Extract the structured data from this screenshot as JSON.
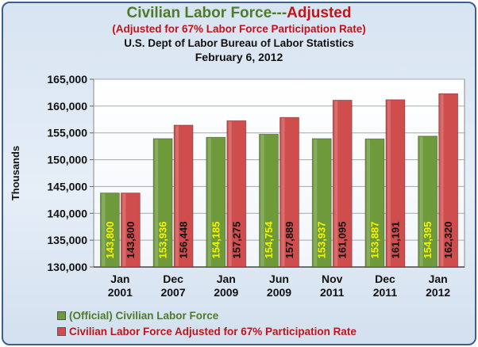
{
  "title": {
    "part1": "Civilian Labor Force---",
    "part2": "Adjusted",
    "line2": "(Adjusted for 67% Labor Force Participation Rate)",
    "line3": "U.S. Dept of Labor Bureau of Labor Statistics",
    "line4": "February 6, 2012"
  },
  "colors": {
    "title_green": "#4f7a2a",
    "title_red": "#c0141b",
    "official_bar": "#6e9a3c",
    "adjusted_bar": "#cf4d4d",
    "official_label": "#f5f500",
    "adjusted_label": "#111111"
  },
  "chart_data": {
    "type": "bar",
    "categories": [
      [
        "Jan",
        "2001"
      ],
      [
        "Dec",
        "2007"
      ],
      [
        "Jan",
        "2009"
      ],
      [
        "Jun",
        "2009"
      ],
      [
        "Nov",
        "2011"
      ],
      [
        "Dec",
        "2011"
      ],
      [
        "Jan",
        "2012"
      ]
    ],
    "series": [
      {
        "name": "(Official) Civilian Labor Force",
        "values": [
          143800,
          153936,
          154185,
          154754,
          153937,
          153887,
          154395
        ],
        "labels": [
          "143,800",
          "153,936",
          "154,185",
          "154,754",
          "153,937",
          "153,887",
          "154,395"
        ]
      },
      {
        "name": "Civilian Labor Force Adjusted for 67% Participation Rate",
        "values": [
          143800,
          156448,
          157275,
          157889,
          161095,
          161191,
          162320
        ],
        "labels": [
          "143,800",
          "156,448",
          "157,275",
          "157,889",
          "161,095",
          "161,191",
          "162,320"
        ]
      }
    ],
    "ylabel": "Thousands",
    "ylim": [
      130000,
      165000
    ],
    "yticks": [
      130000,
      135000,
      140000,
      145000,
      150000,
      155000,
      160000,
      165000
    ],
    "ytick_labels": [
      "130,000",
      "135,000",
      "140,000",
      "145,000",
      "150,000",
      "155,000",
      "160,000",
      "165,000"
    ],
    "grid": true,
    "legend": "bottom-left"
  }
}
